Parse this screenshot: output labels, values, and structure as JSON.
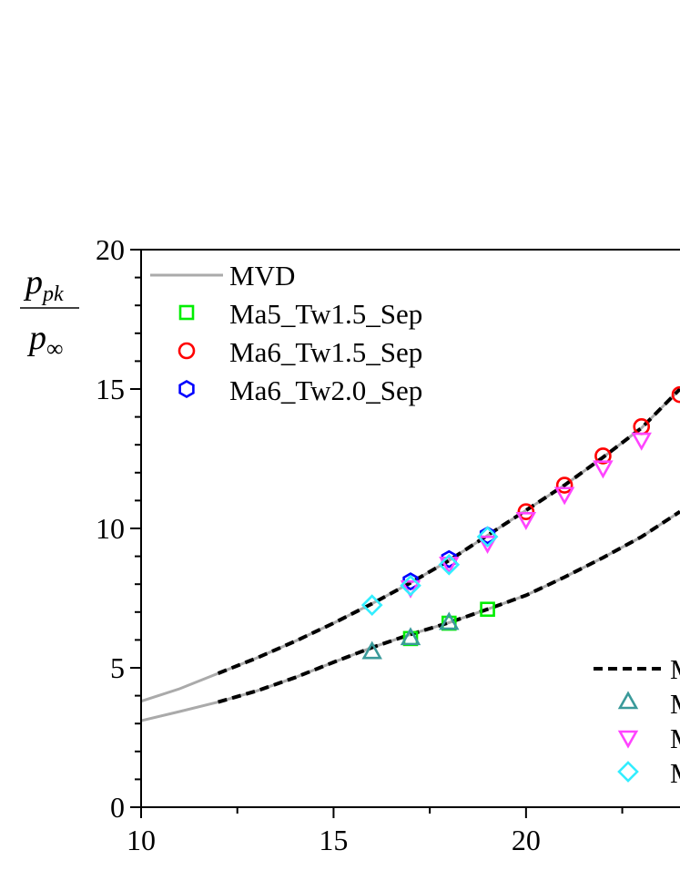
{
  "chart_data": {
    "type": "scatter",
    "ylabel_num": "p",
    "ylabel_num_sub": "pk",
    "ylabel_den": "p",
    "ylabel_den_sub": "∞",
    "xlim": [
      10,
      24.0
    ],
    "ylim": [
      0,
      20
    ],
    "x_ticks": [
      10,
      15,
      20
    ],
    "y_ticks": [
      0,
      5,
      10,
      15,
      20
    ],
    "grid": false,
    "legend_left": [
      {
        "name": "MVD",
        "kind": "line",
        "color": "#aaaaaa"
      },
      {
        "name": "Ma5_Tw1.5_Sep",
        "kind": "square",
        "color": "#00ee00"
      },
      {
        "name": "Ma6_Tw1.5_Sep",
        "kind": "circle",
        "color": "#ff0000"
      },
      {
        "name": "Ma6_Tw2.0_Sep",
        "kind": "hexagon",
        "color": "#0000ff"
      }
    ],
    "legend_right": [
      {
        "name": "M",
        "kind": "dashed",
        "color": "#000000"
      },
      {
        "name": "M",
        "kind": "triangle-up",
        "color": "#3a9a9a"
      },
      {
        "name": "M",
        "kind": "triangle-down",
        "color": "#ff44ff"
      },
      {
        "name": "M",
        "kind": "diamond",
        "color": "#33eeff"
      }
    ],
    "curves": [
      {
        "kind": "line",
        "color": "#aaaaaa",
        "x": [
          10,
          11,
          12,
          13,
          14,
          15,
          16,
          17,
          18,
          19,
          20,
          21,
          22,
          23,
          24
        ],
        "y": [
          3.1,
          3.43,
          3.77,
          4.17,
          4.65,
          5.2,
          5.73,
          6.2,
          6.62,
          7.1,
          7.6,
          8.25,
          8.95,
          9.7,
          10.6
        ]
      },
      {
        "kind": "line",
        "color": "#aaaaaa",
        "x": [
          10,
          11,
          12,
          13,
          14,
          15,
          16,
          17,
          18,
          19,
          20,
          21,
          22,
          23,
          24
        ],
        "y": [
          3.8,
          4.25,
          4.8,
          5.35,
          5.95,
          6.6,
          7.3,
          8.05,
          8.85,
          9.75,
          10.65,
          11.55,
          12.55,
          13.6,
          15.0
        ]
      },
      {
        "kind": "dashed",
        "color": "#000000",
        "x": [
          12,
          13,
          14,
          15,
          16,
          17,
          18,
          19,
          20,
          21,
          22,
          23,
          24
        ],
        "y": [
          3.77,
          4.17,
          4.65,
          5.2,
          5.73,
          6.2,
          6.62,
          7.1,
          7.6,
          8.25,
          8.95,
          9.7,
          10.6
        ]
      },
      {
        "kind": "dashed",
        "color": "#000000",
        "x": [
          12,
          13,
          14,
          15,
          16,
          17,
          18,
          19,
          20,
          21,
          22,
          23,
          24
        ],
        "y": [
          4.8,
          5.35,
          5.95,
          6.6,
          7.3,
          8.05,
          8.85,
          9.75,
          10.65,
          11.55,
          12.55,
          13.6,
          15.0
        ]
      }
    ],
    "series": [
      {
        "name": "Ma5_Tw1.5_Sep",
        "marker": "square",
        "color": "#00ee00",
        "x": [
          17,
          18,
          19
        ],
        "y": [
          6.05,
          6.6,
          7.1
        ]
      },
      {
        "name": "Ma6_Tw1.5_Sep",
        "marker": "circle",
        "color": "#ff0000",
        "x": [
          20,
          21,
          22,
          23,
          24
        ],
        "y": [
          10.6,
          11.55,
          12.6,
          13.65,
          14.8
        ]
      },
      {
        "name": "Ma6_Tw2.0_Sep",
        "marker": "hexagon",
        "color": "#0000ff",
        "x": [
          17,
          18,
          19
        ],
        "y": [
          8.1,
          8.9,
          9.75
        ]
      },
      {
        "marker": "triangle-up",
        "color": "#3a9a9a",
        "x": [
          16,
          17,
          18
        ],
        "y": [
          5.55,
          6.05,
          6.6
        ]
      },
      {
        "marker": "triangle-down",
        "color": "#ff44ff",
        "x": [
          17,
          18,
          19,
          20,
          21,
          22,
          23
        ],
        "y": [
          7.9,
          8.75,
          9.5,
          10.35,
          11.25,
          12.2,
          13.2
        ]
      },
      {
        "marker": "diamond",
        "color": "#33eeff",
        "x": [
          16,
          17,
          18,
          19
        ],
        "y": [
          7.25,
          7.95,
          8.7,
          9.7
        ]
      }
    ]
  }
}
